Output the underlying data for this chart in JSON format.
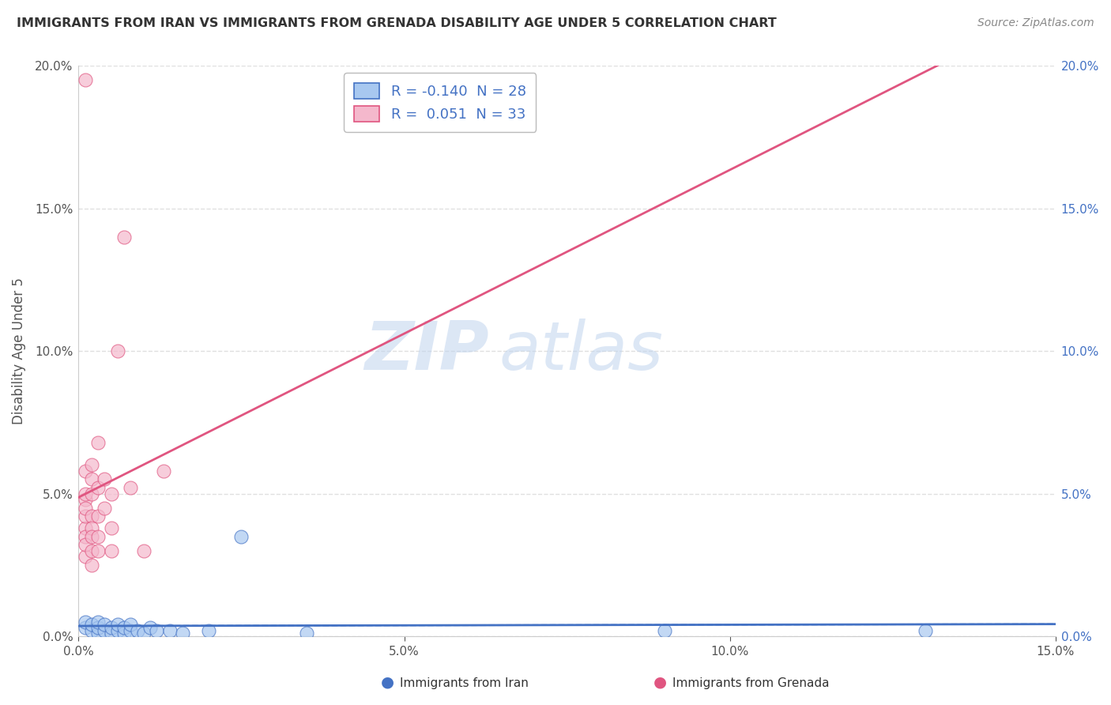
{
  "title": "IMMIGRANTS FROM IRAN VS IMMIGRANTS FROM GRENADA DISABILITY AGE UNDER 5 CORRELATION CHART",
  "source": "Source: ZipAtlas.com",
  "ylabel": "Disability Age Under 5",
  "legend_label_1": "Immigrants from Iran",
  "legend_label_2": "Immigrants from Grenada",
  "R1": -0.14,
  "N1": 28,
  "R2": 0.051,
  "N2": 33,
  "color_iran": "#a8c8f0",
  "color_grenada": "#f4b8cc",
  "line_color_iran": "#4472c4",
  "line_color_grenada": "#e05580",
  "xlim": [
    0.0,
    0.15
  ],
  "ylim": [
    0.0,
    0.2
  ],
  "xticks": [
    0.0,
    0.05,
    0.1,
    0.15
  ],
  "yticks": [
    0.0,
    0.05,
    0.1,
    0.15,
    0.2
  ],
  "iran_x": [
    0.001,
    0.001,
    0.002,
    0.002,
    0.003,
    0.003,
    0.003,
    0.004,
    0.004,
    0.005,
    0.005,
    0.006,
    0.006,
    0.007,
    0.007,
    0.008,
    0.008,
    0.009,
    0.01,
    0.011,
    0.012,
    0.014,
    0.016,
    0.02,
    0.025,
    0.035,
    0.09,
    0.13
  ],
  "iran_y": [
    0.003,
    0.005,
    0.002,
    0.004,
    0.001,
    0.003,
    0.005,
    0.002,
    0.004,
    0.001,
    0.003,
    0.002,
    0.004,
    0.001,
    0.003,
    0.002,
    0.004,
    0.002,
    0.001,
    0.003,
    0.002,
    0.002,
    0.001,
    0.002,
    0.035,
    0.001,
    0.002,
    0.002
  ],
  "grenada_x": [
    0.001,
    0.001,
    0.001,
    0.001,
    0.001,
    0.001,
    0.001,
    0.001,
    0.001,
    0.001,
    0.002,
    0.002,
    0.002,
    0.002,
    0.002,
    0.002,
    0.002,
    0.002,
    0.003,
    0.003,
    0.003,
    0.003,
    0.003,
    0.004,
    0.004,
    0.005,
    0.005,
    0.005,
    0.006,
    0.007,
    0.008,
    0.01,
    0.013
  ],
  "grenada_y": [
    0.195,
    0.058,
    0.048,
    0.038,
    0.035,
    0.042,
    0.028,
    0.05,
    0.032,
    0.045,
    0.055,
    0.05,
    0.042,
    0.038,
    0.03,
    0.06,
    0.035,
    0.025,
    0.068,
    0.052,
    0.042,
    0.035,
    0.03,
    0.055,
    0.045,
    0.05,
    0.038,
    0.03,
    0.1,
    0.14,
    0.052,
    0.03,
    0.058
  ],
  "watermark_zip": "ZIP",
  "watermark_atlas": "atlas",
  "background_color": "#ffffff",
  "grid_color": "#e0e0e0",
  "title_color": "#333333",
  "source_color": "#888888",
  "tick_color": "#555555",
  "legend_color": "#4472c4"
}
